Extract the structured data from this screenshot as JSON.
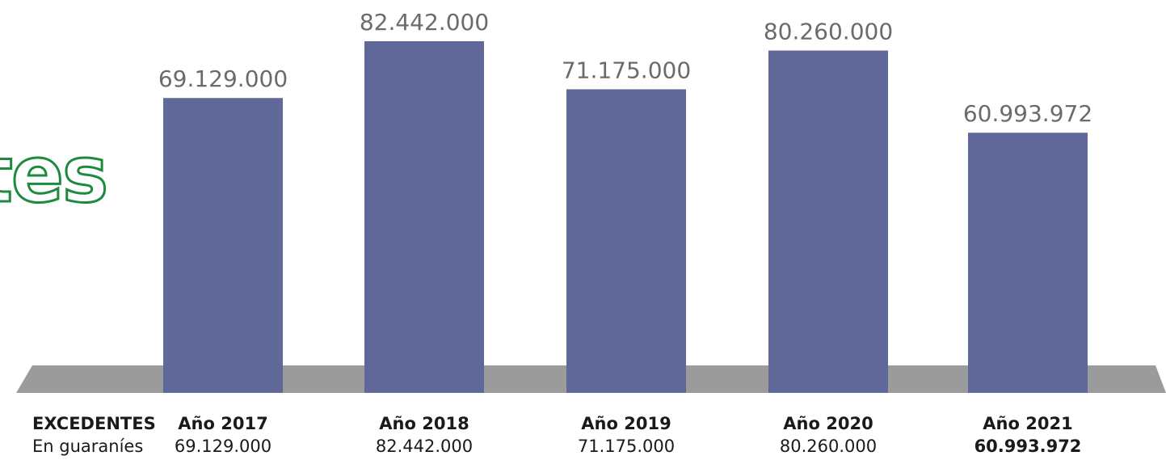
{
  "colors": {
    "bar": "#5f6898",
    "floor": "#9b9b9b",
    "value_label": "#6b6b6b",
    "outline_text": "#1d8a3e"
  },
  "partial_heading": "tes",
  "chart_data": {
    "type": "bar",
    "categories": [
      "Año 2017",
      "Año 2018",
      "Año 2019",
      "Año 2020",
      "Año 2021"
    ],
    "values": [
      69129000,
      82442000,
      71175000,
      80260000,
      60993972
    ],
    "value_labels": [
      "69.129.000",
      "82.442.000",
      "71.175.000",
      "80.260.000",
      "60.993.972"
    ],
    "title": "",
    "xlabel": "",
    "ylabel": "",
    "grid": false,
    "legend": "none"
  },
  "table": {
    "header_label": "EXCEDENTES",
    "row_label": "En guaraníes",
    "years": [
      "Año 2017",
      "Año 2018",
      "Año 2019",
      "Año 2020",
      "Año 2021"
    ],
    "values": [
      "69.129.000",
      "82.442.000",
      "71.175.000",
      "80.260.000",
      "60.993.972"
    ],
    "highlight_last": true
  }
}
